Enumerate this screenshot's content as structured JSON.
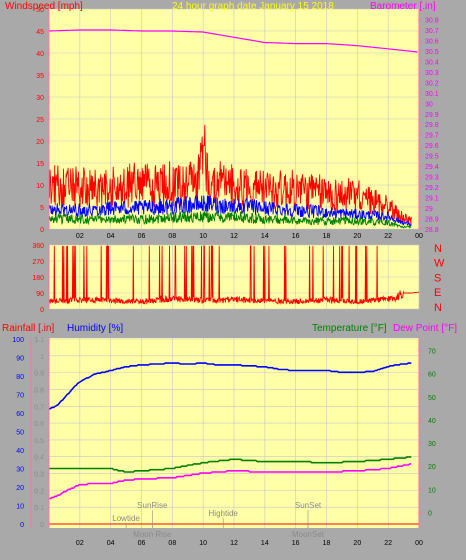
{
  "colors": {
    "background": "#a9a9a9",
    "plot_bg": "#ffffa8",
    "grid": "#c8c8c8",
    "red": "#ff0000",
    "blue": "#0000ff",
    "green": "#008000",
    "magenta": "#ff00ff",
    "title_yellow": "#ffff00",
    "dark_text": "#8a8a8a",
    "pink_axis": "#ff6fae"
  },
  "chart_data": [
    {
      "type": "line",
      "title": "24 hour graph date   January 15 2018",
      "ylabel_left": "Windspeed [mph]",
      "ylabel_right": "Barometer [.in]",
      "ylim_left": [
        0,
        50
      ],
      "ylim_right": [
        28.8,
        30.9
      ],
      "yticks_left": [
        "0",
        "5",
        "10",
        "15",
        "20",
        "25",
        "30",
        "35",
        "40",
        "45",
        "50"
      ],
      "yticks_right": [
        "28.8",
        "28.9",
        "29",
        "29.1",
        "29.2",
        "29.3",
        "29.4",
        "29.5",
        "29.6",
        "29.7",
        "29.8",
        "29.9",
        "30",
        "30.1",
        "30.2",
        "30.3",
        "30.4",
        "30.5",
        "30.6",
        "30.7",
        "30.8"
      ],
      "xticks": [
        "02",
        "04",
        "06",
        "08",
        "10",
        "12",
        "14",
        "16",
        "18",
        "20",
        "22",
        "00"
      ],
      "grid": true,
      "series": [
        {
          "name": "Windspeed gust",
          "color": "red",
          "x": [
            0,
            2,
            4,
            6,
            8,
            9.5,
            10,
            10.4,
            12,
            14,
            16,
            18,
            20,
            21,
            22,
            22.8,
            23.5
          ],
          "y": [
            11,
            10,
            10,
            11,
            11,
            12,
            19,
            11,
            11,
            10,
            10,
            9,
            8,
            7,
            6,
            3,
            2
          ]
        },
        {
          "name": "Windspeed avg",
          "color": "blue",
          "x": [
            0,
            2,
            4,
            6,
            8,
            10,
            12,
            14,
            16,
            18,
            20,
            22,
            23,
            23.5
          ],
          "y": [
            4.5,
            4.5,
            5,
            5,
            5.5,
            6,
            5.5,
            5,
            4.5,
            4,
            3.5,
            3,
            1.5,
            1
          ]
        },
        {
          "name": "Windspeed low",
          "color": "green",
          "x": [
            0,
            2,
            4,
            6,
            8,
            10,
            12,
            14,
            16,
            18,
            20,
            22,
            23,
            23.5
          ],
          "y": [
            2.5,
            2.5,
            2.5,
            2.5,
            3,
            3,
            3,
            2.5,
            2,
            2,
            2,
            1.5,
            0.5,
            0.5
          ]
        },
        {
          "name": "Barometer",
          "color": "magenta",
          "x": [
            0,
            2,
            4,
            6,
            8,
            10,
            12,
            14,
            16,
            18,
            20,
            22,
            23.9
          ],
          "y": [
            30.69,
            30.7,
            30.7,
            30.69,
            30.69,
            30.68,
            30.63,
            30.58,
            30.57,
            30.57,
            30.55,
            30.52,
            30.49
          ]
        }
      ]
    },
    {
      "type": "line",
      "yticks": [
        "0",
        "90",
        "180",
        "270",
        "360"
      ],
      "ylim": [
        0,
        360
      ],
      "direction_labels": [
        "N",
        "W",
        "S",
        "E",
        "N"
      ],
      "xticks": [],
      "series": [
        {
          "name": "Wind direction",
          "color": "red",
          "x": [
            0,
            2,
            4,
            6,
            8,
            10,
            12,
            14,
            16,
            18,
            20,
            21.5,
            22.5,
            23,
            23.5,
            24
          ],
          "y": [
            40,
            50,
            45,
            40,
            55,
            45,
            50,
            45,
            40,
            50,
            40,
            50,
            60,
            90,
            90,
            95
          ]
        }
      ]
    },
    {
      "type": "line",
      "ylabel_left_outer": "Rainfall [.in]",
      "ylabel_left_inner": "Humidity [%]",
      "ylabel_right_1": "Temperature [°F]",
      "ylabel_right_2": "Dew Point [°F]",
      "ylim_rain": [
        0,
        1.1
      ],
      "ylim_humidity": [
        0,
        100
      ],
      "ylim_temp": [
        -5,
        75
      ],
      "yticks_rain": [
        "0",
        "0.1",
        "0.2",
        "0.3",
        "0.4",
        "0.5",
        "0.6",
        "0.7",
        "0.8",
        "0.9",
        "1",
        "1.1"
      ],
      "yticks_humidity": [
        "0",
        "10",
        "20",
        "30",
        "40",
        "50",
        "60",
        "70",
        "80",
        "90",
        "100"
      ],
      "yticks_temp": [
        "0",
        "10",
        "20",
        "30",
        "40",
        "50",
        "60",
        "70"
      ],
      "xticks": [
        "02",
        "04",
        "06",
        "08",
        "10",
        "12",
        "14",
        "16",
        "18",
        "20",
        "22",
        "00"
      ],
      "grid": true,
      "series": [
        {
          "name": "Humidity",
          "color": "blue",
          "x": [
            0,
            0.5,
            1,
            1.5,
            2,
            3,
            4,
            5,
            6,
            7,
            8,
            9,
            10,
            11,
            12,
            13,
            14,
            15,
            16,
            17,
            18,
            19,
            20,
            21,
            22,
            22.5,
            23.5
          ],
          "y": [
            62,
            64,
            68,
            73,
            77,
            81,
            83,
            85,
            86,
            86.5,
            87,
            86.5,
            87,
            86,
            86,
            85.5,
            85,
            83.5,
            83,
            83,
            83,
            82,
            82,
            82.5,
            85,
            86,
            87
          ]
        },
        {
          "name": "Temperature",
          "color": "green",
          "x": [
            0,
            2,
            4,
            5,
            6,
            8,
            10,
            12,
            14,
            16,
            18,
            20,
            22,
            23.5
          ],
          "y": [
            19,
            19,
            19,
            17.5,
            18,
            19,
            21.5,
            23,
            22,
            22,
            21.5,
            22,
            23,
            24
          ]
        },
        {
          "name": "Dew Point",
          "color": "magenta",
          "x": [
            0,
            0.5,
            1,
            2,
            3,
            4,
            5,
            6,
            8,
            10,
            12,
            14,
            16,
            18,
            20,
            22,
            23.5
          ],
          "y": [
            6,
            7,
            9,
            12,
            12.5,
            12.5,
            14,
            14.5,
            15,
            17,
            18,
            17.5,
            17.5,
            17.5,
            18,
            19,
            21
          ]
        },
        {
          "name": "Rainfall",
          "color": "red",
          "x": [
            0,
            24
          ],
          "y": [
            0,
            0
          ]
        }
      ],
      "annotations": [
        {
          "label": "Lowtide",
          "x": 5.0,
          "row": "lower",
          "pos": "above"
        },
        {
          "label": "SunRise",
          "x": 6.7,
          "row": "upper",
          "pos": "above"
        },
        {
          "label": "Moon Rise",
          "x": 6.7,
          "row": "bottom",
          "pos": "below"
        },
        {
          "label": "Hightide",
          "x": 11.3,
          "row": "middle",
          "pos": "above"
        },
        {
          "label": "SunSet",
          "x": 16.8,
          "row": "upper",
          "pos": "above"
        },
        {
          "label": "MoonSet",
          "x": 16.8,
          "row": "bottom",
          "pos": "below"
        }
      ]
    }
  ]
}
